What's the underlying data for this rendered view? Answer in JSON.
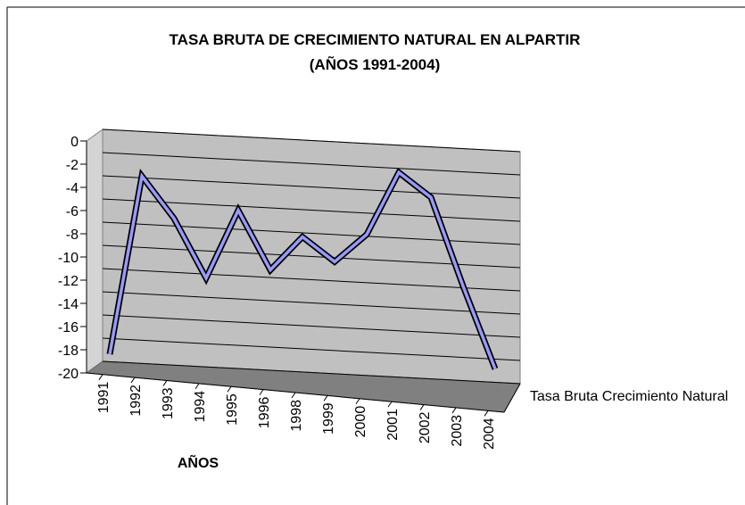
{
  "chart_data": {
    "type": "line",
    "title": "TASA BRUTA DE CRECIMIENTO NATURAL EN ALPARTIR",
    "subtitle": "(AÑOS 1991-2004)",
    "x_label": "AÑOS",
    "categories": [
      "1991",
      "1992",
      "1993",
      "1994",
      "1995",
      "1996",
      "1998",
      "1999",
      "2000",
      "2001",
      "2002",
      "2003",
      "2004"
    ],
    "series": [
      {
        "name": "Tasa Bruta Crecimiento Natural",
        "color": "#9999ff",
        "values": [
          -19,
          -3.5,
          -7,
          -12,
          -6,
          -11,
          -8,
          -10,
          -7.5,
          -2,
          -4,
          -11.5,
          -18.5
        ]
      }
    ],
    "ylim": [
      -20,
      0
    ],
    "yticks": [
      0,
      -2,
      -4,
      -6,
      -8,
      -10,
      -12,
      -14,
      -16,
      -18,
      -20
    ],
    "grid": true
  }
}
